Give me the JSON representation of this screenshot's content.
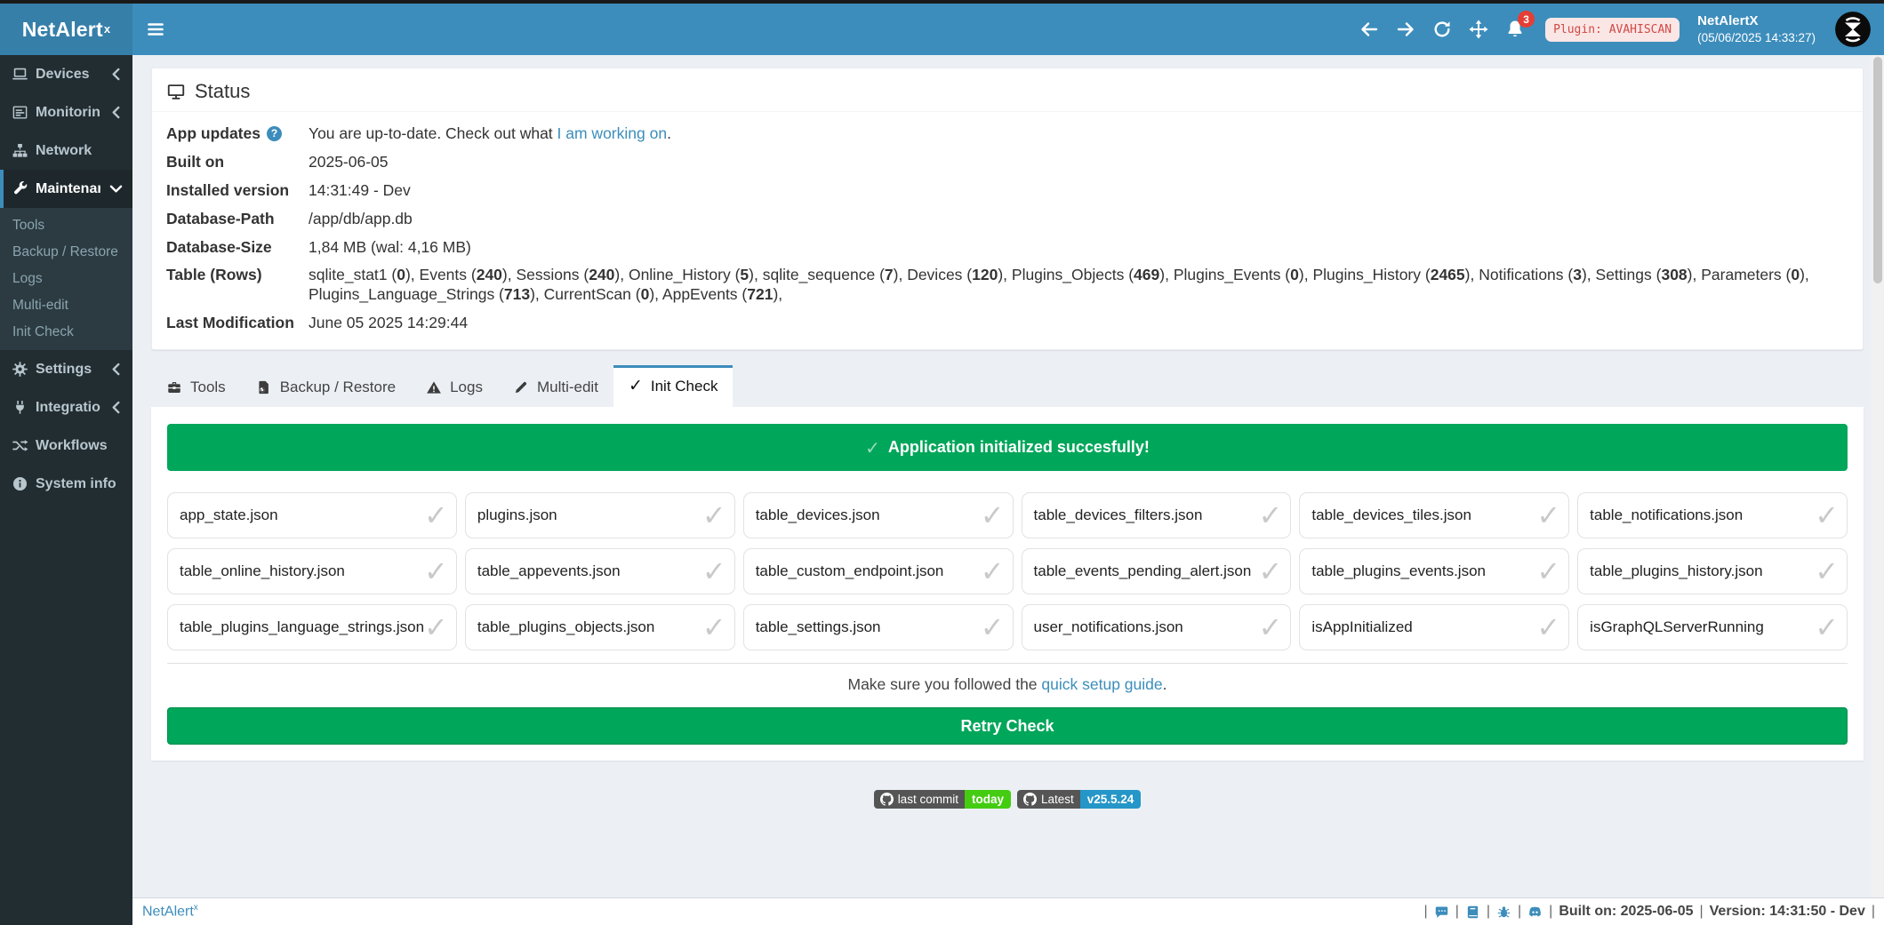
{
  "brand": {
    "logo_text": "NetAlert",
    "logo_sup": "x"
  },
  "glyphs": {
    "check": "✓"
  },
  "navbar": {
    "icons": [
      "back-arrow-icon",
      "forward-arrow-icon",
      "refresh-icon",
      "move-icon"
    ],
    "bell_icon": "bell-icon",
    "notification_count": "3",
    "plugin_badge": "Plugin: AVAHISCAN",
    "user_name": "NetAlertX",
    "user_time": "(05/06/2025 14:33:27)"
  },
  "sidebar": {
    "items": [
      {
        "label": "Devices",
        "icon": "laptop-icon",
        "chevron": "left"
      },
      {
        "label": "Monitoring",
        "icon": "chart-icon",
        "chevron": "left"
      },
      {
        "label": "Network",
        "icon": "sitemap-icon"
      },
      {
        "label": "Maintenance",
        "icon": "wrench-icon",
        "chevron": "down",
        "active": true,
        "children": [
          "Tools",
          "Backup / Restore",
          "Logs",
          "Multi-edit",
          "Init Check"
        ]
      },
      {
        "label": "Settings",
        "icon": "gear-icon",
        "chevron": "left"
      },
      {
        "label": "Integrations",
        "icon": "plug-icon",
        "chevron": "left"
      },
      {
        "label": "Workflows",
        "icon": "shuffle-icon"
      },
      {
        "label": "System info",
        "icon": "info-icon"
      }
    ]
  },
  "status": {
    "title": "Status",
    "icon": "monitor-icon",
    "rows": [
      {
        "label": "App updates",
        "help": "?",
        "segments": [
          {
            "text": "You are up-to-date. Check out what "
          },
          {
            "text": "I am working on",
            "link": true
          },
          {
            "text": "."
          }
        ]
      },
      {
        "label": "Built on",
        "segments": [
          {
            "text": "2025-06-05"
          }
        ]
      },
      {
        "label": "Installed version",
        "segments": [
          {
            "text": "14:31:49 - Dev"
          }
        ]
      },
      {
        "label": "Database-Path",
        "segments": [
          {
            "text": "/app/db/app.db"
          }
        ]
      },
      {
        "label": "Database-Size",
        "segments": [
          {
            "text": "1,84 MB (wal: 4,16 MB)"
          }
        ]
      },
      {
        "label": "Table (Rows)",
        "trailing": ",",
        "table_counts": [
          [
            "sqlite_stat1",
            "0"
          ],
          [
            "Events",
            "240"
          ],
          [
            "Sessions",
            "240"
          ],
          [
            "Online_History",
            "5"
          ],
          [
            "sqlite_sequence",
            "7"
          ],
          [
            "Devices",
            "120"
          ],
          [
            "Plugins_Objects",
            "469"
          ],
          [
            "Plugins_Events",
            "0"
          ],
          [
            "Plugins_History",
            "2465"
          ],
          [
            "Notifications",
            "3"
          ],
          [
            "Settings",
            "308"
          ],
          [
            "Parameters",
            "0"
          ],
          [
            "Plugins_Language_Strings",
            "713"
          ],
          [
            "CurrentScan",
            "0"
          ],
          [
            "AppEvents",
            "721"
          ]
        ]
      },
      {
        "label": "Last Modification",
        "segments": [
          {
            "text": "June 05 2025 14:29:44"
          }
        ]
      }
    ]
  },
  "tabs": [
    {
      "label": "Tools",
      "icon": "toolbox-icon"
    },
    {
      "label": "Backup / Restore",
      "icon": "file-restore-icon"
    },
    {
      "label": "Logs",
      "icon": "warning-icon"
    },
    {
      "label": "Multi-edit",
      "icon": "pencil-icon"
    },
    {
      "label": "Init Check",
      "icon": "check-icon",
      "active": true
    }
  ],
  "init_check": {
    "banner": "Application initialized succesfully!",
    "files": [
      "app_state.json",
      "plugins.json",
      "table_devices.json",
      "table_devices_filters.json",
      "table_devices_tiles.json",
      "table_notifications.json",
      "table_online_history.json",
      "table_appevents.json",
      "table_custom_endpoint.json",
      "table_events_pending_alert.json",
      "table_plugins_events.json",
      "table_plugins_history.json",
      "table_plugins_language_strings.json",
      "table_plugins_objects.json",
      "table_settings.json",
      "user_notifications.json",
      "isAppInitialized",
      "isGraphQLServerRunning"
    ],
    "note_prefix": "Make sure you followed the ",
    "note_link": "quick setup guide",
    "note_suffix": ".",
    "retry_label": "Retry Check"
  },
  "badges": [
    {
      "icon": "github-icon",
      "label": "last commit",
      "value": "today",
      "value_color": "#44cc11"
    },
    {
      "icon": "github-icon",
      "label": "Latest",
      "value": "v25.5.24",
      "value_color": "#2596c8"
    }
  ],
  "footer": {
    "brand": "NetAlert",
    "brand_sup": "x",
    "separator": "|",
    "icons": [
      "comment-icon",
      "book-icon",
      "bug-icon",
      "discord-icon"
    ],
    "built": "Built on: 2025-06-05",
    "version": "Version: 14:31:50 - Dev"
  },
  "colors": {
    "accent": "#3c8dbc",
    "success": "#00a65a",
    "sidebar_bg": "#222d32",
    "content_bg": "#ecf0f5",
    "danger": "#e53e35"
  }
}
